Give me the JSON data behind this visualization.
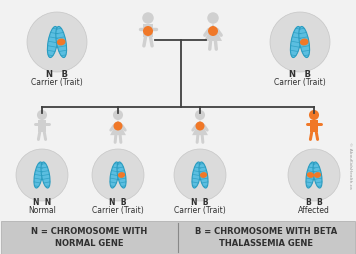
{
  "bg_color": "#f2f2f2",
  "gray_circle": "#d8d8d8",
  "blue_chrom": "#5bbee0",
  "blue_chrom_dark": "#2a9cc0",
  "blue_chrom_stripe": "#88d8f0",
  "orange_band": "#f07828",
  "orange_person": "#f07828",
  "gray_person": "#d0d0d0",
  "line_color": "#404040",
  "legend_bg": "#c8c8c8",
  "text_dark": "#303030",
  "legend_left": "N = CHROMOSOME WITH\nNORMAL GENE",
  "legend_right": "B = CHROMOSOME WITH BETA\nTHALASSEMIA GENE",
  "parent_label": "Carrier (Trait)",
  "child_labels": [
    "Normal",
    "Carrier (Trait)",
    "Carrier (Trait)",
    "Affected"
  ],
  "child_chrom_labels": [
    [
      "N",
      "N"
    ],
    [
      "N",
      "B"
    ],
    [
      "N",
      "B"
    ],
    [
      "B",
      "B"
    ]
  ],
  "parent_chrom_label": [
    "N",
    "B"
  ]
}
